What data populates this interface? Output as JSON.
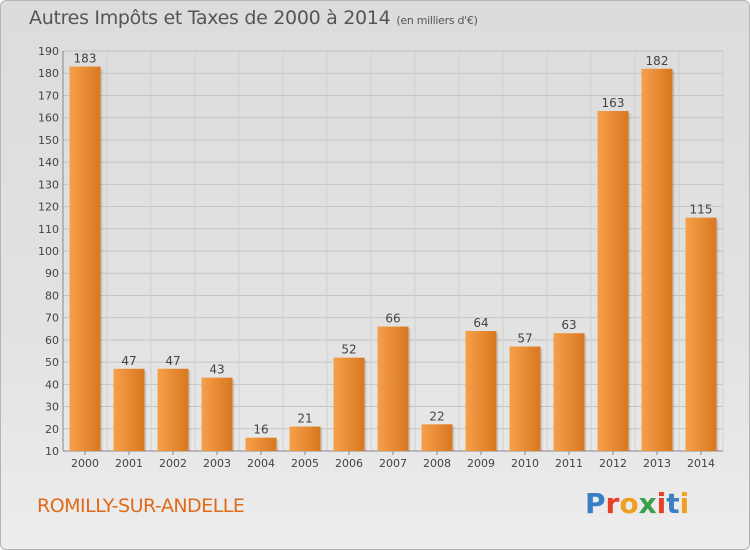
{
  "header": {
    "title": "Autres Impôts et Taxes de 2000 à 2014",
    "subtitle": "(en milliers d'€)"
  },
  "footer": {
    "town": "ROMILLY-SUR-ANDELLE",
    "logo_text": "Proxiti"
  },
  "colors": {
    "bar_light": "#f5a04a",
    "bar_dark": "#d9771f",
    "town": "#e06a1a",
    "logo": [
      "#3a7fc4",
      "#e6402b",
      "#f0a020",
      "#3aa04a",
      "#e6402b",
      "#3a7fc4",
      "#f0a020"
    ]
  },
  "chart_data": {
    "type": "bar",
    "title": "Autres Impôts et Taxes de 2000 à 2014",
    "subtitle": "(en milliers d'€)",
    "categories": [
      "2000",
      "2001",
      "2002",
      "2003",
      "2004",
      "2005",
      "2006",
      "2007",
      "2008",
      "2009",
      "2010",
      "2011",
      "2012",
      "2013",
      "2014"
    ],
    "values": [
      183,
      47,
      47,
      43,
      16,
      21,
      52,
      66,
      22,
      64,
      57,
      63,
      163,
      182,
      115
    ],
    "ylim": [
      10,
      190
    ],
    "yticks": [
      10,
      20,
      30,
      40,
      50,
      60,
      70,
      80,
      90,
      100,
      110,
      120,
      130,
      140,
      150,
      160,
      170,
      180,
      190
    ],
    "grid": true,
    "legend": "none",
    "xlabel": "",
    "ylabel": ""
  }
}
